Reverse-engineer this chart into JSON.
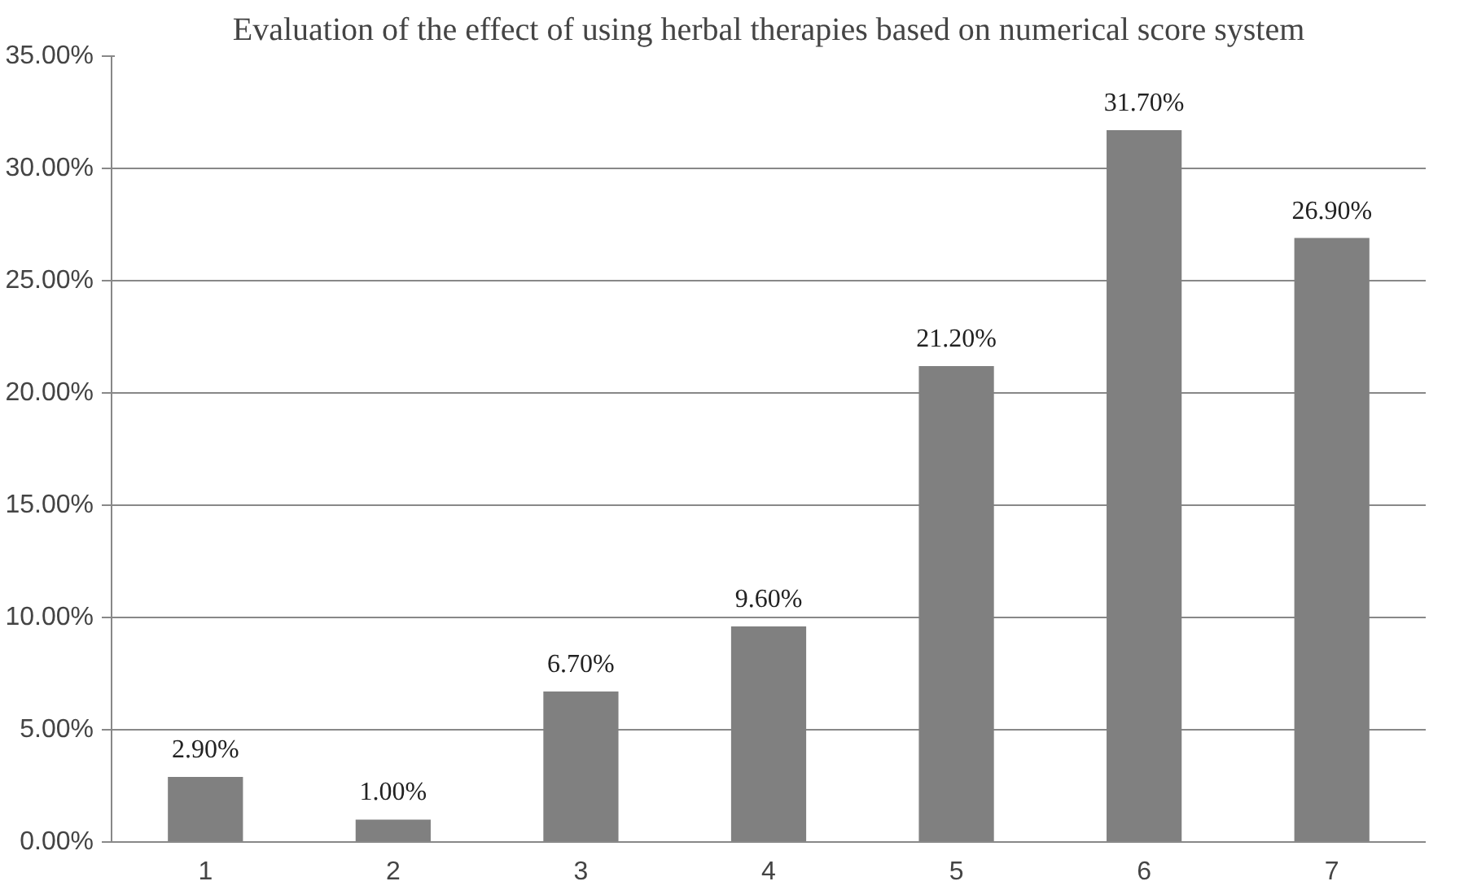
{
  "chart_data": {
    "type": "bar",
    "title": "Evaluation of the effect of using herbal therapies based on numerical score system",
    "categories": [
      "1",
      "2",
      "3",
      "4",
      "5",
      "6",
      "7"
    ],
    "values": [
      2.9,
      1.0,
      6.7,
      9.6,
      21.2,
      31.7,
      26.9
    ],
    "value_labels": [
      "2.90%",
      "1.00%",
      "6.70%",
      "9.60%",
      "21.20%",
      "31.70%",
      "26.90%"
    ],
    "color": "#808080",
    "ylim": [
      0,
      35
    ],
    "yticks": [
      {
        "value": 0,
        "label": "0.00%"
      },
      {
        "value": 5,
        "label": "5.00%"
      },
      {
        "value": 10,
        "label": "10.00%"
      },
      {
        "value": 15,
        "label": "15.00%"
      },
      {
        "value": 20,
        "label": "20.00%"
      },
      {
        "value": 25,
        "label": "25.00%"
      },
      {
        "value": 30,
        "label": "30.00%"
      },
      {
        "value": 35,
        "label": "35.00%"
      }
    ],
    "grid": "y"
  }
}
